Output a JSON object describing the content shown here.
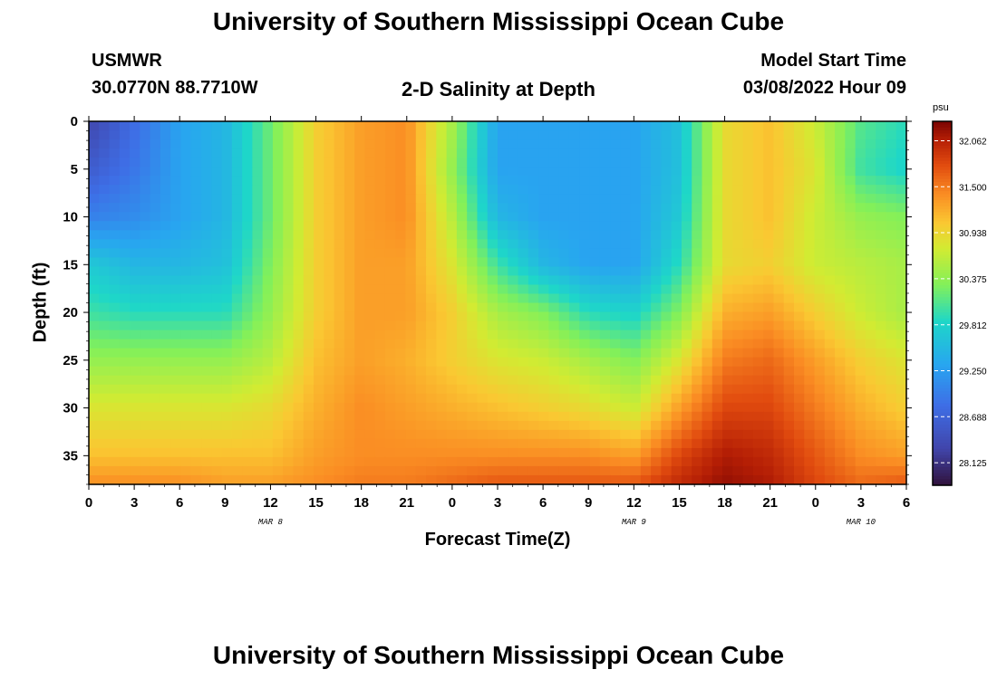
{
  "header": {
    "title": "University of Southern Mississippi Ocean Cube",
    "station": "USMWR",
    "coords": "30.0770N  88.7710W",
    "subtitle": "2-D Salinity at Depth",
    "model_label": "Model Start Time",
    "model_time": "03/08/2022 Hour 09",
    "footer_title": "University of Southern Mississippi Ocean Cube"
  },
  "chart_data": {
    "type": "heatmap",
    "title": "2-D Salinity at Depth",
    "xlabel": "Forecast Time(Z)",
    "ylabel": "Depth (ft)",
    "x_tick_labels": [
      "0",
      "3",
      "6",
      "9",
      "12",
      "15",
      "18",
      "21",
      "0",
      "3",
      "6",
      "9",
      "12",
      "15",
      "18",
      "21",
      "0",
      "3",
      "6"
    ],
    "x_range_hours": [
      0,
      54
    ],
    "day_labels": [
      {
        "label": "MAR 8",
        "hour": 12
      },
      {
        "label": "MAR 9",
        "hour": 36
      },
      {
        "label": "MAR 10",
        "hour": 51
      }
    ],
    "y_tick_labels": [
      "0",
      "5",
      "10",
      "15",
      "20",
      "25",
      "30",
      "35"
    ],
    "ylim_ft": [
      0,
      38
    ],
    "colorbar": {
      "unit": "psu",
      "range": [
        27.85,
        32.3
      ],
      "tick_labels": [
        "32.062",
        "31.500",
        "30.938",
        "30.375",
        "29.812",
        "29.250",
        "28.688",
        "28.125"
      ],
      "tick_values": [
        32.062,
        31.5,
        30.938,
        30.375,
        29.812,
        29.25,
        28.688,
        28.125
      ]
    },
    "grid": {
      "hours": [
        0,
        3,
        6,
        9,
        12,
        15,
        18,
        21,
        24,
        27,
        30,
        33,
        36,
        39,
        42,
        45,
        48,
        51,
        54
      ],
      "depths_ft": [
        0,
        5,
        10,
        15,
        20,
        25,
        30,
        35,
        38
      ],
      "salinity_psu": [
        [
          28.3,
          28.8,
          29.3,
          29.5,
          30.2,
          31.0,
          31.3,
          31.4,
          30.5,
          29.3,
          29.3,
          29.3,
          29.3,
          29.6,
          30.9,
          31.1,
          30.7,
          30.1,
          29.9
        ],
        [
          28.6,
          28.9,
          29.3,
          29.5,
          30.2,
          31.0,
          31.3,
          31.4,
          30.4,
          29.3,
          29.3,
          29.3,
          29.3,
          29.6,
          30.9,
          31.1,
          30.8,
          30.0,
          29.8
        ],
        [
          29.0,
          29.1,
          29.3,
          29.5,
          30.2,
          31.0,
          31.3,
          31.4,
          30.6,
          29.5,
          29.3,
          29.3,
          29.3,
          29.7,
          30.9,
          31.1,
          30.7,
          30.4,
          30.3
        ],
        [
          29.7,
          29.5,
          29.5,
          29.6,
          30.3,
          31.0,
          31.3,
          31.3,
          30.8,
          30.0,
          29.5,
          29.3,
          29.3,
          29.9,
          30.9,
          31.0,
          30.7,
          30.6,
          30.5
        ],
        [
          30.0,
          29.9,
          29.9,
          29.9,
          30.4,
          31.0,
          31.3,
          31.3,
          31.0,
          30.5,
          30.3,
          29.9,
          29.8,
          30.3,
          31.2,
          31.3,
          31.0,
          30.7,
          30.5
        ],
        [
          30.4,
          30.4,
          30.4,
          30.4,
          30.6,
          31.1,
          31.3,
          31.2,
          31.0,
          30.8,
          30.7,
          30.5,
          30.3,
          30.8,
          31.5,
          31.6,
          31.3,
          31.0,
          30.8
        ],
        [
          30.8,
          30.8,
          30.8,
          30.8,
          30.9,
          31.2,
          31.4,
          31.3,
          31.2,
          31.1,
          31.0,
          30.9,
          30.7,
          31.3,
          31.8,
          31.8,
          31.5,
          31.2,
          31.0
        ],
        [
          31.1,
          31.1,
          31.1,
          31.1,
          31.1,
          31.3,
          31.4,
          31.4,
          31.4,
          31.4,
          31.4,
          31.4,
          31.3,
          31.8,
          32.1,
          32.0,
          31.7,
          31.4,
          31.3
        ],
        [
          31.4,
          31.4,
          31.4,
          31.3,
          31.3,
          31.4,
          31.5,
          31.5,
          31.6,
          31.7,
          31.7,
          31.7,
          31.7,
          32.0,
          32.2,
          32.1,
          31.8,
          31.6,
          31.7
        ]
      ]
    }
  }
}
